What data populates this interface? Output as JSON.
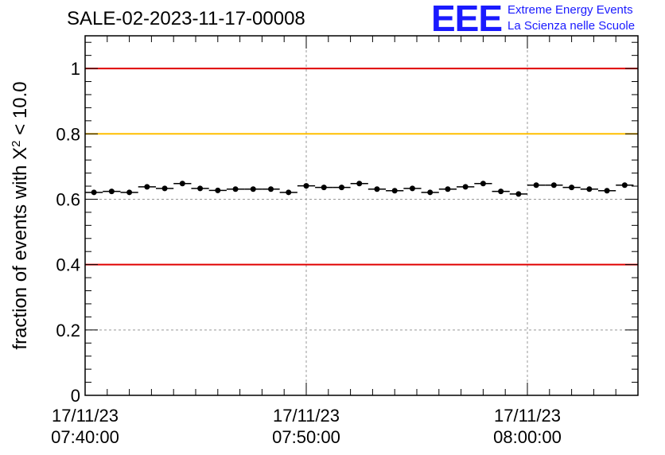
{
  "header": {
    "run_title": "SALE-02-2023-11-17-00008",
    "logo_mark": "EEE",
    "logo_line1": "Extreme Energy Events",
    "logo_line2": "La Scienza nelle Scuole"
  },
  "colors": {
    "red_line": "#e00000",
    "orange_line": "#ffbf00",
    "logo_blue": "#1a1aff"
  },
  "chart_data": {
    "type": "scatter",
    "title": "SALE-02-2023-11-17-00008",
    "xlabel": "",
    "ylabel": "fraction of events with X² < 10.0",
    "ylabel_parts": {
      "pre": "fraction of events with X",
      "sup": "2",
      "post": " < 10.0"
    },
    "ylim": [
      0,
      1.1
    ],
    "xlim_minutes": [
      0,
      25
    ],
    "x_unit": "minutes after 17/11/23 07:40:00",
    "y_ticks": [
      {
        "value": 0,
        "label": "0"
      },
      {
        "value": 0.2,
        "label": "0.2"
      },
      {
        "value": 0.4,
        "label": "0.4"
      },
      {
        "value": 0.6,
        "label": "0.6"
      },
      {
        "value": 0.8,
        "label": "0.8"
      },
      {
        "value": 1,
        "label": "1"
      }
    ],
    "x_ticks": [
      {
        "value": 0,
        "date": "17/11/23",
        "time": "07:40:00"
      },
      {
        "value": 10,
        "date": "17/11/23",
        "time": "07:50:00"
      },
      {
        "value": 20,
        "date": "17/11/23",
        "time": "08:00:00"
      }
    ],
    "grid": true,
    "reference_lines": [
      {
        "y": 1.0,
        "color": "red"
      },
      {
        "y": 0.8,
        "color": "orange"
      },
      {
        "y": 0.4,
        "color": "red"
      }
    ],
    "bin_width_minutes": 0.8,
    "x": [
      0.4,
      1.2,
      2.0,
      2.8,
      3.6,
      4.4,
      5.2,
      6.0,
      6.8,
      7.6,
      8.4,
      9.2,
      10.0,
      10.8,
      11.6,
      12.4,
      13.2,
      14.0,
      14.8,
      15.6,
      16.4,
      17.2,
      18.0,
      18.8,
      19.6,
      20.4,
      21.2,
      22.0,
      22.8,
      23.6,
      24.4
    ],
    "y": [
      0.621,
      0.624,
      0.621,
      0.638,
      0.633,
      0.648,
      0.633,
      0.627,
      0.631,
      0.631,
      0.631,
      0.621,
      0.641,
      0.636,
      0.636,
      0.648,
      0.631,
      0.626,
      0.633,
      0.621,
      0.631,
      0.638,
      0.648,
      0.624,
      0.616,
      0.643,
      0.643,
      0.636,
      0.631,
      0.626,
      0.643
    ],
    "y_err": [
      0.006,
      0.006,
      0.006,
      0.006,
      0.006,
      0.006,
      0.006,
      0.006,
      0.006,
      0.006,
      0.006,
      0.006,
      0.006,
      0.006,
      0.006,
      0.006,
      0.006,
      0.006,
      0.006,
      0.006,
      0.006,
      0.006,
      0.006,
      0.006,
      0.006,
      0.006,
      0.006,
      0.006,
      0.006,
      0.006,
      0.006
    ]
  }
}
